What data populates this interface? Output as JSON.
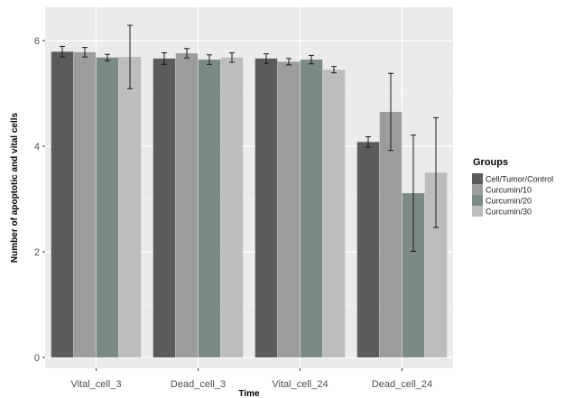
{
  "chart_data": {
    "type": "bar",
    "xlabel": "Time",
    "ylabel": "Number of apoptotic and vital cells",
    "ylim": [
      0,
      6.3
    ],
    "yticks": [
      0,
      2,
      4,
      6
    ],
    "grid": true,
    "legend_position": "right",
    "legend_title": "Groups",
    "categories": [
      "Vital_cell_3",
      "Dead_cell_3",
      "Vital_cell_24",
      "Dead_cell_24"
    ],
    "series": [
      {
        "name": "Cell/Tumor/Control",
        "color": "#5b5b5b",
        "values": [
          5.79,
          5.66,
          5.66,
          4.08
        ],
        "errors": [
          0.1,
          0.11,
          0.09,
          0.1
        ]
      },
      {
        "name": "Curcumin/10",
        "color": "#9c9c9c",
        "values": [
          5.78,
          5.76,
          5.6,
          4.65
        ],
        "errors": [
          0.09,
          0.09,
          0.06,
          0.73
        ]
      },
      {
        "name": "Curcumin/20",
        "color": "#7c8a86",
        "values": [
          5.68,
          5.64,
          5.64,
          3.11
        ],
        "errors": [
          0.06,
          0.09,
          0.08,
          1.1
        ]
      },
      {
        "name": "Curcumin/30",
        "color": "#bdbdbd",
        "values": [
          5.69,
          5.68,
          5.45,
          3.5
        ],
        "errors": [
          0.6,
          0.09,
          0.06,
          1.04
        ]
      }
    ]
  }
}
